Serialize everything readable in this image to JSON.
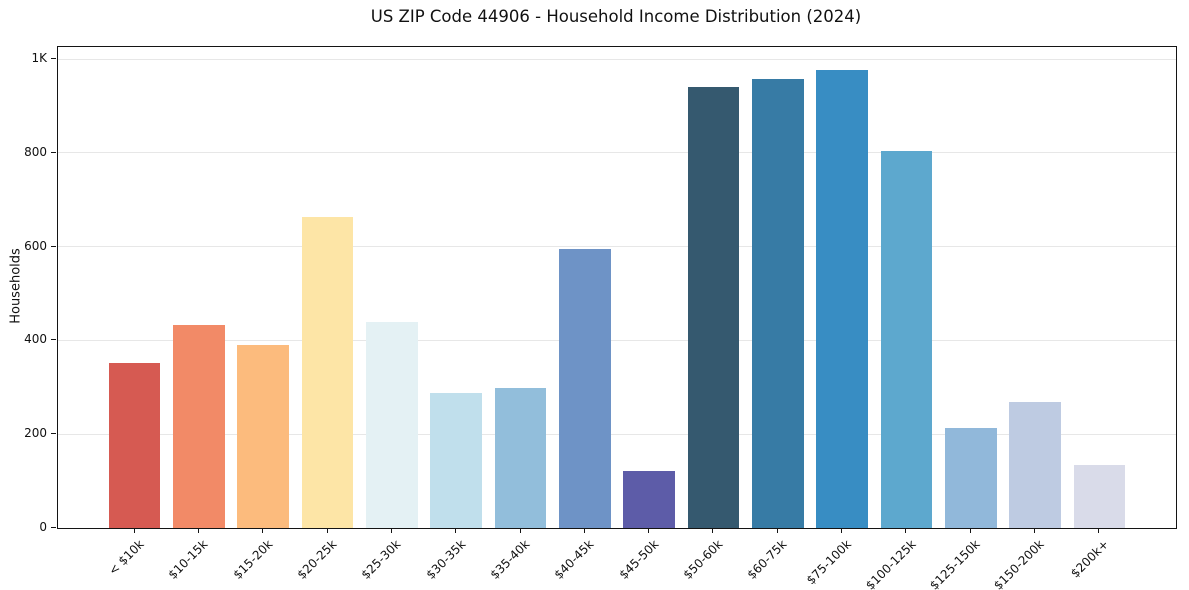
{
  "chart_data": {
    "type": "bar",
    "title": "US ZIP Code 44906 - Household Income Distribution (2024)",
    "xlabel": "",
    "ylabel": "Households",
    "categories": [
      "< $10k",
      "$10-15k",
      "$15-20k",
      "$20-25k",
      "$25-30k",
      "$30-35k",
      "$35-40k",
      "$40-45k",
      "$45-50k",
      "$50-60k",
      "$60-75k",
      "$75-100k",
      "$100-125k",
      "$125-150k",
      "$150-200k",
      "$200k+"
    ],
    "values": [
      351,
      434,
      391,
      663,
      439,
      289,
      299,
      596,
      122,
      940,
      957,
      978,
      805,
      214,
      269,
      135
    ],
    "bar_colors": [
      "#d65a52",
      "#f28a67",
      "#fcbb7d",
      "#fde5a6",
      "#e4f1f4",
      "#c0dfec",
      "#92bedb",
      "#6e93c6",
      "#5d5ca8",
      "#35596f",
      "#377ba5",
      "#388dc3",
      "#5da8ce",
      "#91b8da",
      "#becbe2",
      "#d9dbe9"
    ],
    "yticks": [
      {
        "value": 0,
        "label": "0"
      },
      {
        "value": 200,
        "label": "200"
      },
      {
        "value": 400,
        "label": "400"
      },
      {
        "value": 600,
        "label": "600"
      },
      {
        "value": 800,
        "label": "800"
      },
      {
        "value": 1000,
        "label": "1K"
      }
    ],
    "ylim": [
      0,
      1026
    ],
    "grid": "horizontal",
    "gridline_color": "#e7e7e7",
    "background": "#ffffff",
    "legend_position": "none"
  }
}
